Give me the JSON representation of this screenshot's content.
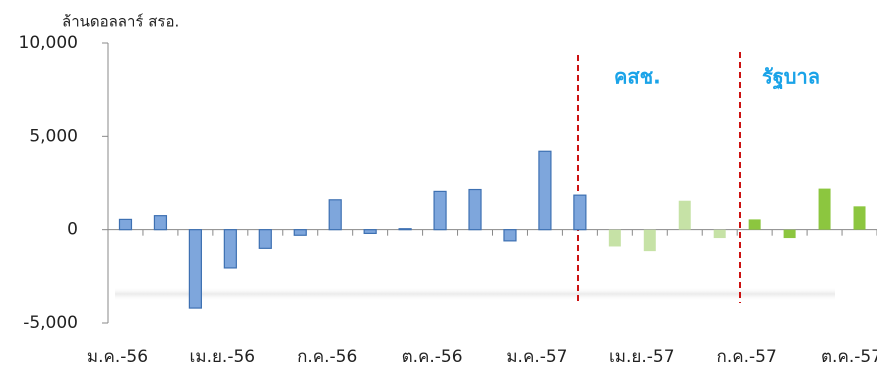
{
  "chart_data": {
    "type": "bar",
    "y_label": "ล้านดอลลาร์ สรอ.",
    "annotations": [
      "คสช.",
      "รัฐบาล"
    ],
    "categories": [
      "ม.ค.-56",
      null,
      null,
      "เม.ย.-56",
      null,
      null,
      "ก.ค.-56",
      null,
      null,
      "ต.ค.-56",
      null,
      null,
      "ม.ค.-57",
      null,
      null,
      "เม.ย.-57",
      null,
      null,
      "ก.ค.-57",
      null,
      null,
      "ต.ค.-57"
    ],
    "values": [
      550,
      750,
      -4200,
      -2050,
      -1000,
      -300,
      1600,
      -200,
      50,
      2050,
      2150,
      -600,
      4200,
      1850,
      -900,
      -1150,
      1550,
      -450,
      550,
      -450,
      2200,
      1250
    ],
    "colors": [
      "#7ea6dc",
      "#7ea6dc",
      "#7ea6dc",
      "#7ea6dc",
      "#7ea6dc",
      "#7ea6dc",
      "#7ea6dc",
      "#7ea6dc",
      "#7ea6dc",
      "#7ea6dc",
      "#7ea6dc",
      "#7ea6dc",
      "#7ea6dc",
      "#7ea6dc",
      "#c6e2a6",
      "#c6e2a6",
      "#c6e2a6",
      "#c6e2a6",
      "#8cc63f",
      "#8cc63f",
      "#8cc63f",
      "#8cc63f"
    ],
    "ylim": [
      -5000,
      10000
    ],
    "yticks": [
      {
        "value": -5000,
        "label": "-5,000"
      },
      0,
      {
        "value": 5000,
        "label": "5,000"
      },
      {
        "value": 10000,
        "label": "10,000"
      }
    ]
  }
}
